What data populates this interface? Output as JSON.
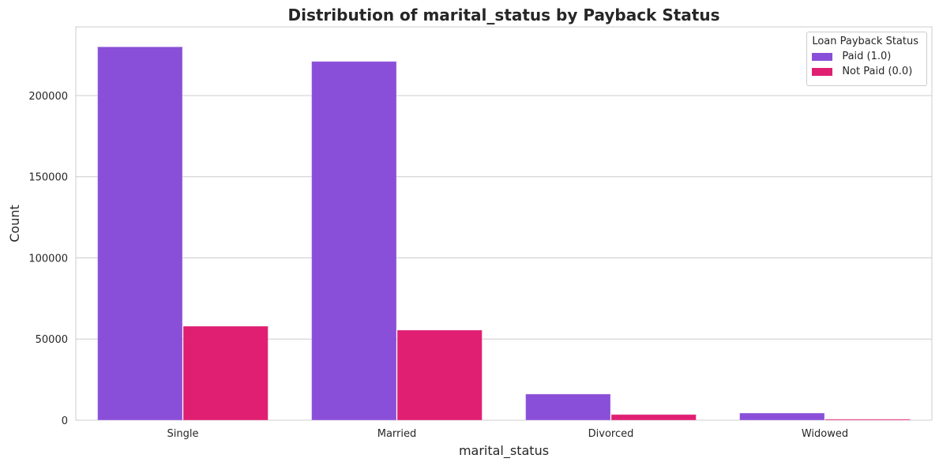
{
  "chart_data": {
    "type": "bar",
    "title": "Distribution of marital_status by Payback Status",
    "xlabel": "marital_status",
    "ylabel": "Count",
    "categories": [
      "Single",
      "Married",
      "Divorced",
      "Widowed"
    ],
    "series": [
      {
        "name": "Paid (1.0)",
        "color": "#8a2be2",
        "values": [
          230000,
          221000,
          16100,
          4400
        ]
      },
      {
        "name": "Not Paid (0.0)",
        "color": "#ff1493",
        "values": [
          57900,
          55500,
          3500,
          600
        ]
      }
    ],
    "ylim": [
      0,
      242300
    ],
    "yticks": [
      0,
      50000,
      100000,
      150000,
      200000
    ],
    "grid": true,
    "legend": {
      "title": "Loan Payback Status",
      "placement": "top-right"
    }
  }
}
